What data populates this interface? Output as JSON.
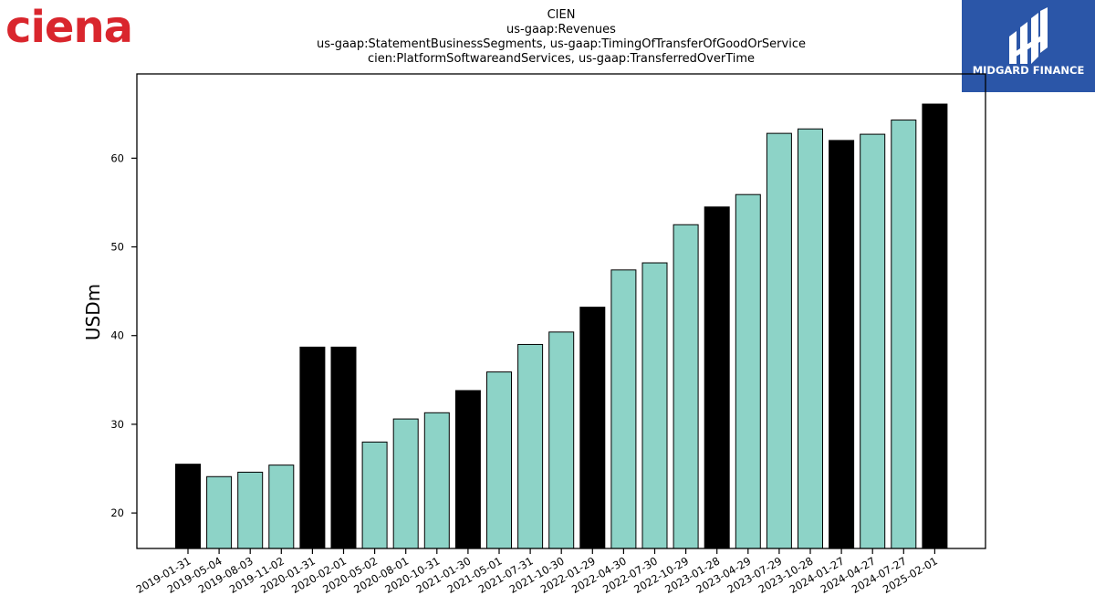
{
  "logos": {
    "left_brand": "ciena",
    "right_brand": "MIDGARD FINANCE"
  },
  "colors": {
    "bar_default": "#8dd3c7",
    "bar_highlight": "#000000",
    "ciena_red": "#d9262d",
    "midgard_blue": "#2b56a8"
  },
  "chart_data": {
    "type": "bar",
    "title": [
      "CIEN",
      "us-gaap:Revenues",
      "us-gaap:StatementBusinessSegments, us-gaap:TimingOfTransferOfGoodOrService",
      "cien:PlatformSoftwareandServices, us-gaap:TransferredOverTime"
    ],
    "xlabel": "",
    "ylabel": "USDm",
    "ylim": [
      16,
      69.5
    ],
    "yticks": [
      20,
      30,
      40,
      50,
      60
    ],
    "grid": false,
    "categories": [
      "2019-01-31",
      "2019-05-04",
      "2019-08-03",
      "2019-11-02",
      "2020-01-31",
      "2020-02-01",
      "2020-05-02",
      "2020-08-01",
      "2020-10-31",
      "2021-01-30",
      "2021-05-01",
      "2021-07-31",
      "2021-10-30",
      "2022-01-29",
      "2022-04-30",
      "2022-07-30",
      "2022-10-29",
      "2023-01-28",
      "2023-04-29",
      "2023-07-29",
      "2023-10-28",
      "2024-01-27",
      "2024-04-27",
      "2024-07-27",
      "2025-02-01"
    ],
    "values": [
      25.5,
      24.1,
      24.6,
      25.4,
      38.7,
      38.7,
      28.0,
      30.6,
      31.3,
      33.8,
      35.9,
      39.0,
      40.4,
      43.2,
      47.4,
      48.2,
      52.5,
      54.5,
      55.9,
      62.8,
      63.3,
      62.0,
      62.7,
      64.3,
      66.1
    ],
    "highlighted": [
      true,
      false,
      false,
      false,
      true,
      true,
      false,
      false,
      false,
      true,
      false,
      false,
      false,
      true,
      false,
      false,
      false,
      true,
      false,
      false,
      false,
      true,
      false,
      false,
      true
    ]
  }
}
